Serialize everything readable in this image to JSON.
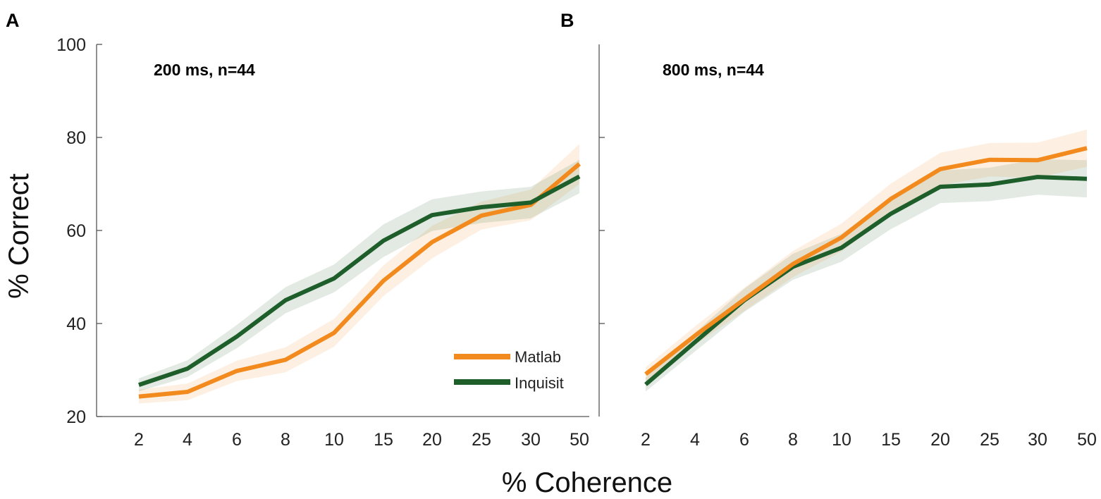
{
  "colors": {
    "matlab": "#F28A1E",
    "inquisit": "#1E5E2A",
    "axis": "#555555"
  },
  "figure": {
    "xlabel": "% Coherence",
    "ylabel": "% Correct"
  },
  "legend": [
    {
      "name": "Matlab"
    },
    {
      "name": "Inquisit"
    }
  ],
  "chart_data": [
    {
      "type": "line",
      "panel": "A",
      "title": "200 ms, n=44",
      "categories": [
        "2",
        "4",
        "6",
        "8",
        "10",
        "15",
        "20",
        "25",
        "30",
        "50"
      ],
      "ylim": [
        20,
        100
      ],
      "yticks": [
        20,
        40,
        60,
        80,
        100
      ],
      "series": [
        {
          "name": "Matlab",
          "values": [
            24.3,
            25.3,
            29.8,
            32.2,
            38.0,
            49.2,
            57.5,
            63.2,
            65.5,
            74.3
          ],
          "error": [
            1.5,
            1.8,
            2.2,
            2.7,
            3.0,
            3.3,
            3.5,
            3.0,
            3.3,
            4.3
          ]
        },
        {
          "name": "Inquisit",
          "values": [
            26.8,
            30.3,
            37.2,
            45.0,
            49.7,
            57.8,
            63.3,
            65.0,
            66.0,
            71.6
          ],
          "error": [
            1.4,
            1.8,
            2.5,
            2.8,
            3.0,
            3.5,
            3.4,
            3.4,
            3.4,
            3.6
          ]
        }
      ]
    },
    {
      "type": "line",
      "panel": "B",
      "title": "800 ms, n=44",
      "categories": [
        "2",
        "4",
        "6",
        "8",
        "10",
        "15",
        "20",
        "25",
        "30",
        "50"
      ],
      "ylim": [
        20,
        100
      ],
      "yticks": [
        40,
        60,
        80
      ],
      "series": [
        {
          "name": "Matlab",
          "values": [
            29.1,
            37.4,
            45.2,
            52.8,
            58.5,
            66.8,
            73.2,
            75.2,
            75.1,
            77.7
          ],
          "error": [
            1.5,
            2.0,
            2.5,
            2.8,
            3.0,
            3.3,
            3.5,
            3.6,
            3.8,
            4.0
          ]
        },
        {
          "name": "Inquisit",
          "values": [
            26.9,
            36.0,
            45.0,
            52.2,
            56.3,
            63.6,
            69.4,
            69.9,
            71.5,
            71.1
          ],
          "error": [
            1.5,
            2.0,
            2.5,
            2.8,
            3.0,
            3.3,
            3.5,
            3.6,
            3.8,
            4.0
          ]
        }
      ]
    }
  ]
}
